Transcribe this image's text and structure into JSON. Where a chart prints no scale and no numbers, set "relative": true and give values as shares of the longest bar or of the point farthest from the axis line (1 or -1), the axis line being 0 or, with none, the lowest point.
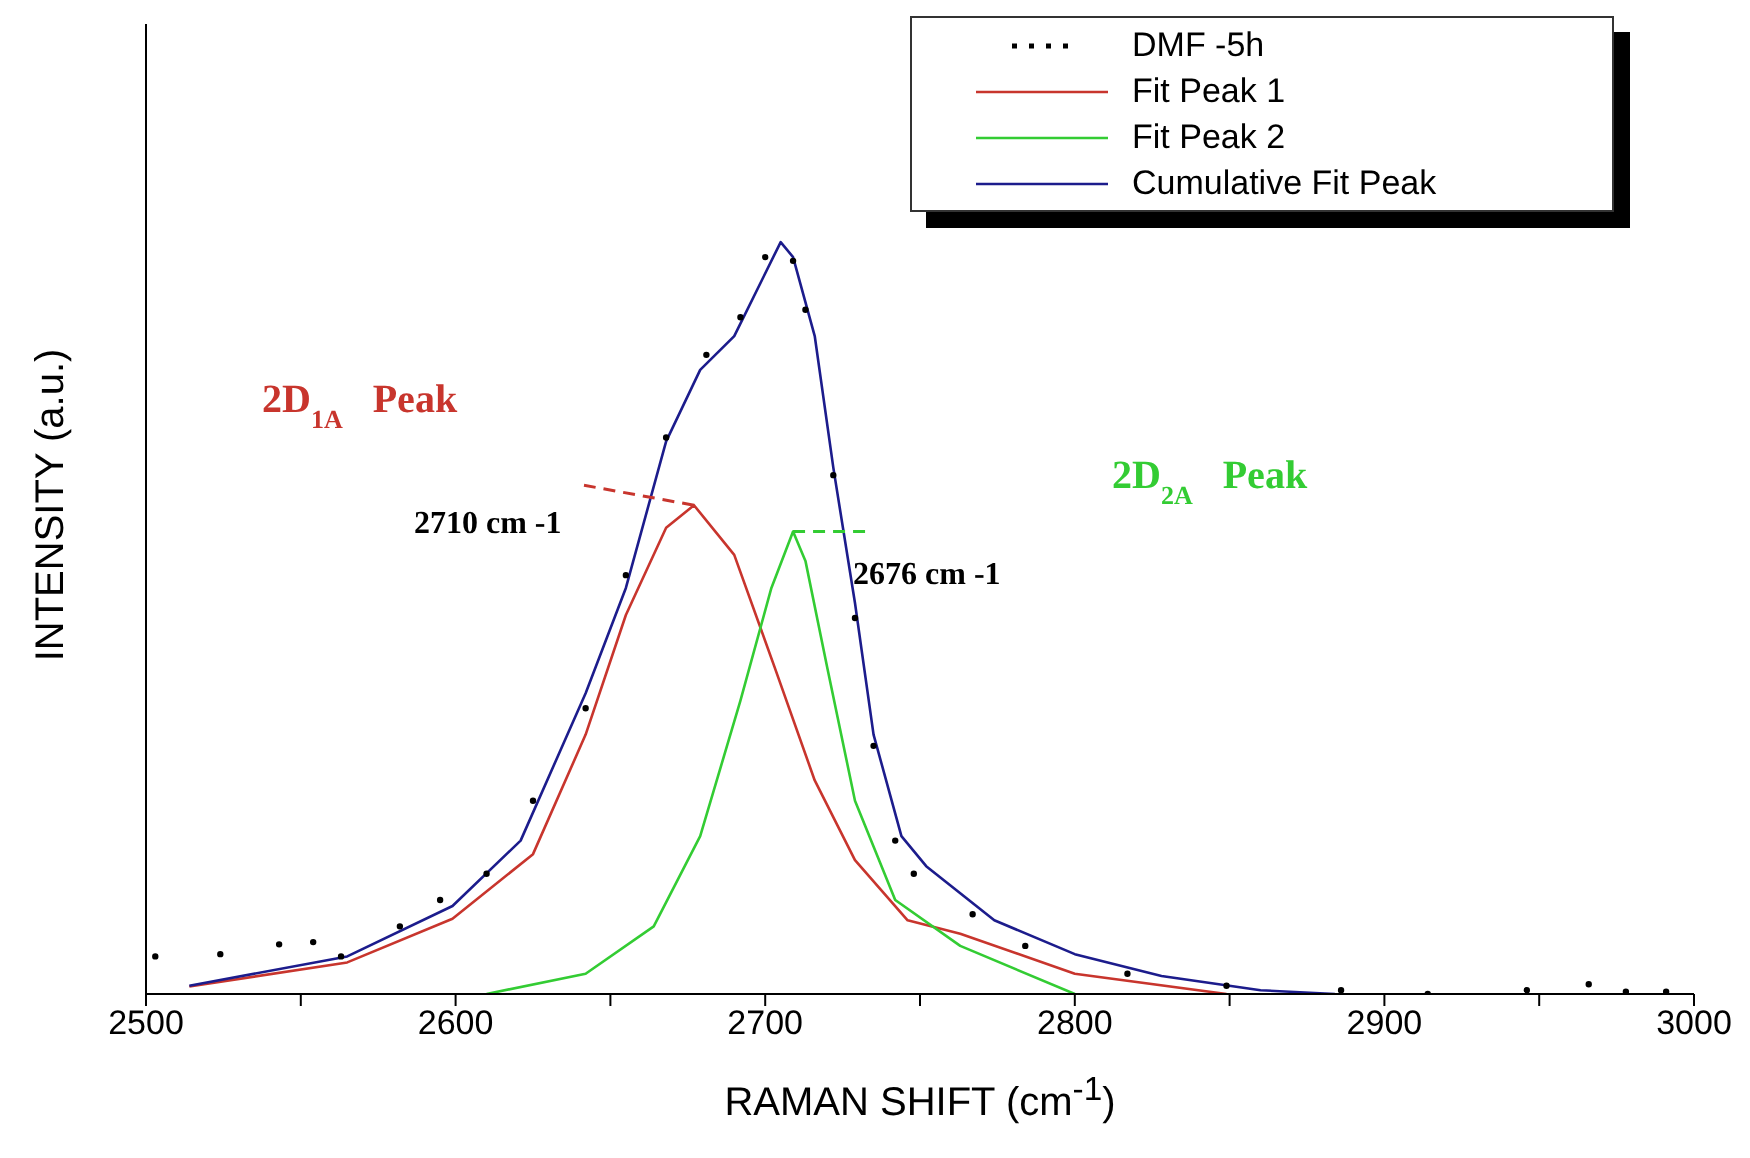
{
  "chart_data": {
    "type": "line",
    "xlabel": "RAMAN SHIFT (cm$^{-1}$)",
    "ylabel": "INTENSITY (a.u.)",
    "relative": true,
    "xlim": [
      2500,
      3000
    ],
    "xticks": [
      2500,
      {
        "value": 2550,
        "label": null
      },
      2600,
      {
        "value": 2650,
        "label": null
      },
      2700,
      {
        "value": 2750,
        "label": null
      },
      2800,
      {
        "value": 2850,
        "label": null
      },
      2900,
      {
        "value": 2950,
        "label": null
      },
      3000
    ],
    "tick_labels": "x",
    "legend": "top right",
    "grid": false,
    "series": [
      {
        "name": "DMF -5h",
        "type": "scatter",
        "color": "#000000",
        "x": [
          2503,
          2524,
          2543,
          2554,
          2563,
          2582,
          2595,
          2610,
          2625,
          2642,
          2655,
          2668,
          2681,
          2692,
          2700,
          2709,
          2713,
          2722,
          2729,
          2735,
          2742,
          2748,
          2767,
          2784,
          2817,
          2849,
          2886,
          2914,
          2946,
          2966,
          2978,
          2991
        ],
        "values": [
          0.05,
          0.053,
          0.066,
          0.069,
          0.05,
          0.09,
          0.125,
          0.16,
          0.257,
          0.38,
          0.557,
          0.74,
          0.85,
          0.9,
          0.98,
          0.975,
          0.91,
          0.69,
          0.5,
          0.33,
          0.204,
          0.16,
          0.106,
          0.064,
          0.027,
          0.011,
          0.005,
          0,
          0.005,
          0.013,
          0.003,
          0.003
        ]
      },
      {
        "name": "Fit Peak 1",
        "type": "line",
        "color": "#c8352d",
        "x": [
          2514,
          2565,
          2599,
          2625,
          2642,
          2655,
          2668,
          2677,
          2690,
          2703,
          2716,
          2729,
          2746,
          2763,
          2800,
          2849
        ],
        "values": [
          0.01,
          0.042,
          0.1,
          0.186,
          0.345,
          0.504,
          0.62,
          0.65,
          0.584,
          0.435,
          0.284,
          0.178,
          0.098,
          0.08,
          0.027,
          0
        ]
      },
      {
        "name": "Fit Peak 2",
        "type": "line",
        "color": "#33cc33",
        "x": [
          2610,
          2642,
          2664,
          2679,
          2692,
          2702,
          2709,
          2713,
          2720,
          2729,
          2742,
          2763,
          2800
        ],
        "values": [
          0,
          0.027,
          0.09,
          0.21,
          0.39,
          0.54,
          0.615,
          0.576,
          0.435,
          0.257,
          0.125,
          0.064,
          0
        ]
      },
      {
        "name": "Cumulative Fit Peak",
        "type": "line",
        "color": "#1c1c8c",
        "x": [
          2514,
          2565,
          2599,
          2621,
          2642,
          2655,
          2668,
          2679,
          2690,
          2705,
          2709,
          2716,
          2722,
          2729,
          2735,
          2744,
          2752,
          2774,
          2800,
          2828,
          2860,
          2884
        ],
        "values": [
          0.011,
          0.05,
          0.117,
          0.204,
          0.4,
          0.54,
          0.735,
          0.83,
          0.875,
          1,
          0.98,
          0.875,
          0.7,
          0.52,
          0.345,
          0.21,
          0.17,
          0.098,
          0.053,
          0.024,
          0.005,
          0
        ]
      }
    ],
    "annotations": [
      "2D$_{1A}$   Peak",
      {
        "text": "2710 cm -1",
        "x": 2677,
        "y": 0.65
      },
      "2D$_{2A}$   Peak",
      {
        "text": "2676 cm -1",
        "x": 2709,
        "y": 0.615
      }
    ]
  }
}
